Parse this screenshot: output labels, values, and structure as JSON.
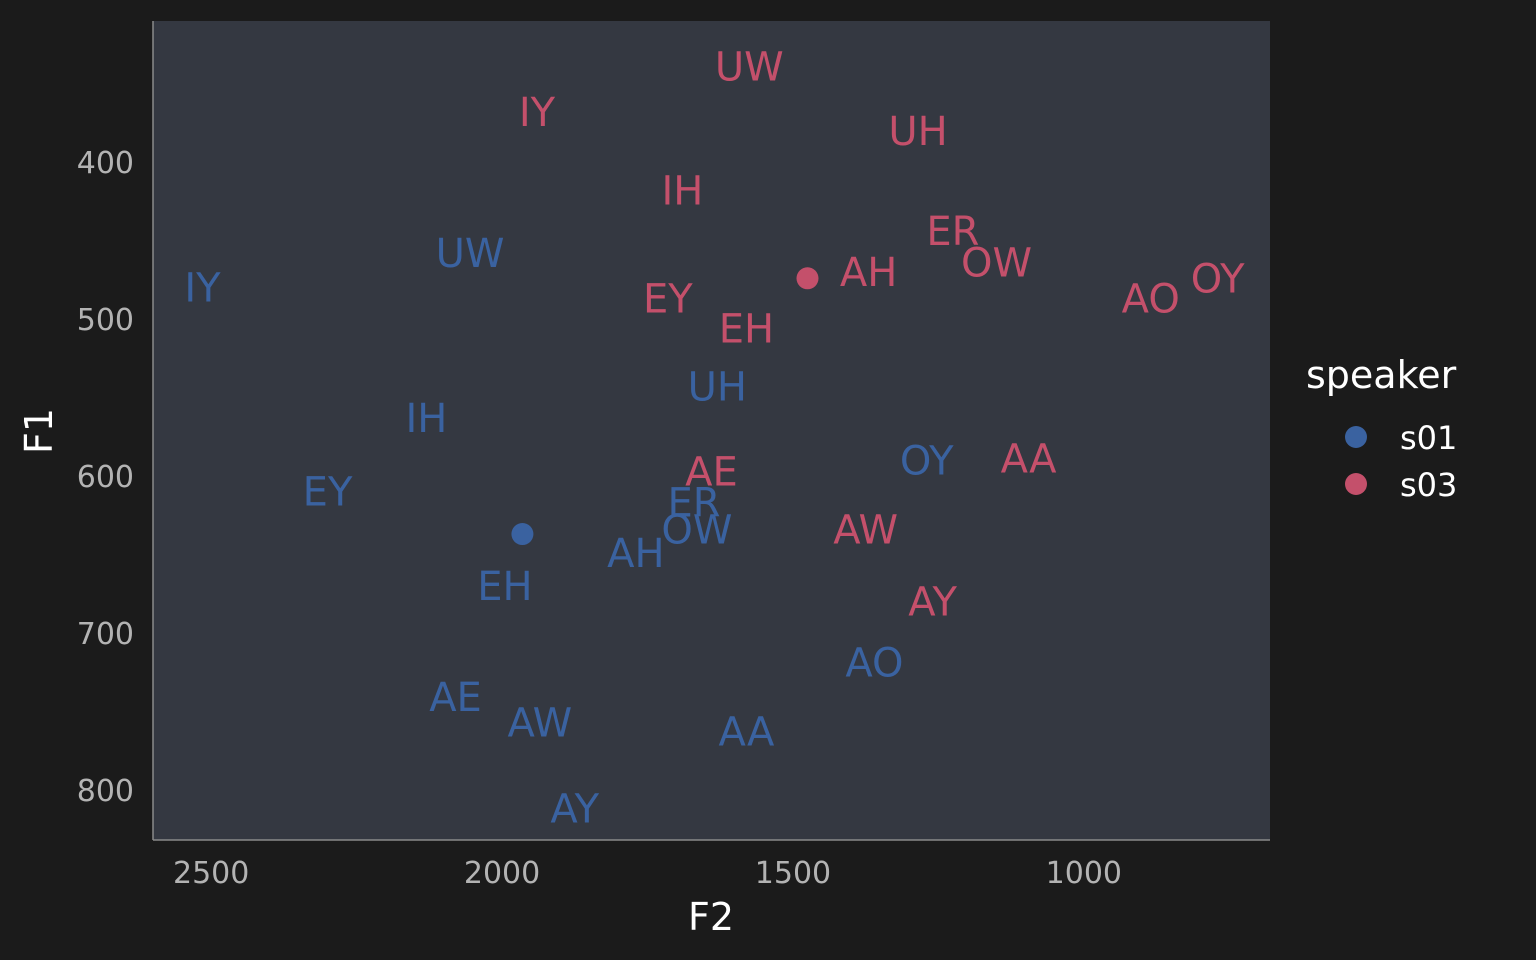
{
  "chart_data": {
    "type": "scatter",
    "title": "",
    "xlabel": "F2",
    "ylabel": "F1",
    "x_reversed": true,
    "y_reversed": true,
    "xlim": [
      2600,
      680
    ],
    "ylim": [
      310,
      832
    ],
    "x_ticks": [
      2500,
      2000,
      1500,
      1000
    ],
    "y_ticks": [
      400,
      500,
      600,
      700,
      800
    ],
    "grid": false,
    "legend": {
      "title": "speaker",
      "position": "right"
    },
    "colors": {
      "s01": "#3a62a0",
      "s03": "#c4506b",
      "panel": "#343841",
      "background": "#1b1b1b"
    },
    "series": [
      {
        "name": "s01",
        "centroid": {
          "x": 1965,
          "y": 637
        },
        "labels": [
          {
            "text": "IY",
            "x": 2515,
            "y": 480
          },
          {
            "text": "UW",
            "x": 2055,
            "y": 458
          },
          {
            "text": "IH",
            "x": 2130,
            "y": 563
          },
          {
            "text": "EY",
            "x": 2300,
            "y": 610
          },
          {
            "text": "UH",
            "x": 1630,
            "y": 543
          },
          {
            "text": "ER",
            "x": 1670,
            "y": 617
          },
          {
            "text": "OW",
            "x": 1665,
            "y": 634
          },
          {
            "text": "AH",
            "x": 1770,
            "y": 649
          },
          {
            "text": "EH",
            "x": 1995,
            "y": 670
          },
          {
            "text": "OY",
            "x": 1270,
            "y": 590
          },
          {
            "text": "AO",
            "x": 1360,
            "y": 719
          },
          {
            "text": "AE",
            "x": 2080,
            "y": 741
          },
          {
            "text": "AW",
            "x": 1935,
            "y": 757
          },
          {
            "text": "AA",
            "x": 1580,
            "y": 763
          },
          {
            "text": "AY",
            "x": 1875,
            "y": 812
          }
        ]
      },
      {
        "name": "s03",
        "centroid": {
          "x": 1475,
          "y": 474
        },
        "labels": [
          {
            "text": "UW",
            "x": 1575,
            "y": 339
          },
          {
            "text": "IY",
            "x": 1940,
            "y": 368
          },
          {
            "text": "UH",
            "x": 1285,
            "y": 380
          },
          {
            "text": "IH",
            "x": 1690,
            "y": 418
          },
          {
            "text": "ER",
            "x": 1225,
            "y": 444
          },
          {
            "text": "OW",
            "x": 1150,
            "y": 464
          },
          {
            "text": "AH",
            "x": 1370,
            "y": 470
          },
          {
            "text": "OY",
            "x": 770,
            "y": 474
          },
          {
            "text": "AO",
            "x": 885,
            "y": 487
          },
          {
            "text": "EY",
            "x": 1715,
            "y": 487
          },
          {
            "text": "EH",
            "x": 1580,
            "y": 506
          },
          {
            "text": "AE",
            "x": 1640,
            "y": 597
          },
          {
            "text": "AA",
            "x": 1095,
            "y": 589
          },
          {
            "text": "AW",
            "x": 1375,
            "y": 634
          },
          {
            "text": "AY",
            "x": 1260,
            "y": 680
          }
        ]
      }
    ]
  }
}
